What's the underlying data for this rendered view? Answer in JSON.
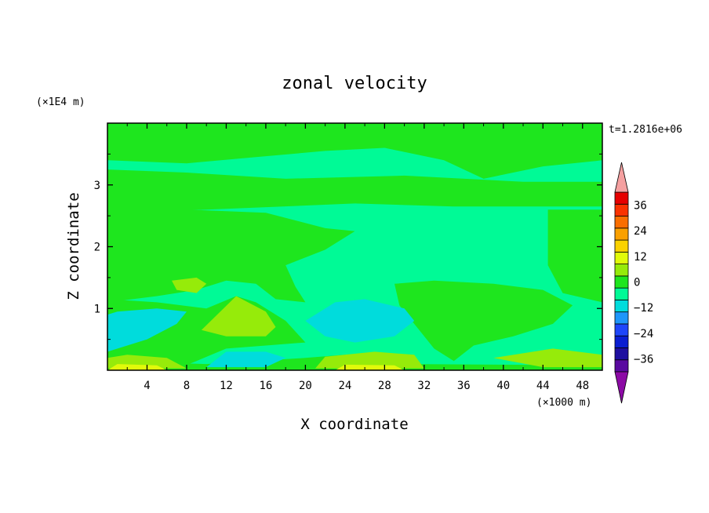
{
  "chart_data": {
    "type": "heatmap",
    "title": "zonal velocity",
    "xlabel": "X coordinate",
    "ylabel": "Z coordinate",
    "x_unit_label": "(×1000 m)",
    "y_unit_label": "(×1E4 m)",
    "time_label": "t=1.2816e+06",
    "xlim": [
      0,
      50
    ],
    "ylim": [
      0,
      4
    ],
    "x_ticks": [
      4,
      8,
      12,
      16,
      20,
      24,
      28,
      32,
      36,
      40,
      44,
      48
    ],
    "x_tick_labels": [
      "4",
      "8",
      "12",
      "16",
      "20",
      "24",
      "28",
      "32",
      "36",
      "40",
      "44",
      "48"
    ],
    "y_ticks": [
      1,
      2,
      3
    ],
    "y_tick_labels": [
      "1",
      "2",
      "3"
    ],
    "colorbar": {
      "levels": [
        -42,
        -36,
        -30,
        -24,
        -18,
        -12,
        -6,
        0,
        6,
        12,
        18,
        24,
        30,
        36,
        42
      ],
      "tick_values": [
        -36,
        -24,
        -12,
        0,
        12,
        24,
        36
      ],
      "tick_labels": [
        "−36",
        "−24",
        "−12",
        "0",
        "12",
        "24",
        "36"
      ],
      "colors": [
        "#5a0aa0",
        "#1e0fa0",
        "#0a1ed2",
        "#1e46fa",
        "#1e96fa",
        "#00dcdc",
        "#00fa96",
        "#1ee61e",
        "#96eb0a",
        "#e1fa0a",
        "#fad200",
        "#faa000",
        "#fa6e00",
        "#fa3200",
        "#e60000"
      ],
      "under_color": "#8c0aa5",
      "over_color": "#f5a0a0"
    },
    "regions": [
      {
        "name": "background",
        "level_bin": 6,
        "polygon": [
          [
            0,
            0
          ],
          [
            50,
            0
          ],
          [
            50,
            4
          ],
          [
            0,
            4
          ]
        ]
      },
      {
        "name": "upper green band",
        "level_bin": 7,
        "polygon": [
          [
            0,
            2.55
          ],
          [
            10,
            2.6
          ],
          [
            25,
            2.7
          ],
          [
            35,
            2.65
          ],
          [
            50,
            2.65
          ],
          [
            50,
            3.05
          ],
          [
            42,
            3.05
          ],
          [
            30,
            3.15
          ],
          [
            18,
            3.1
          ],
          [
            8,
            3.2
          ],
          [
            0,
            3.25
          ]
        ]
      },
      {
        "name": "top green layer",
        "level_bin": 7,
        "polygon": [
          [
            0,
            3.4
          ],
          [
            8,
            3.35
          ],
          [
            15,
            3.45
          ],
          [
            22,
            3.55
          ],
          [
            28,
            3.6
          ],
          [
            34,
            3.4
          ],
          [
            38,
            3.1
          ],
          [
            44,
            3.3
          ],
          [
            50,
            3.4
          ],
          [
            50,
            3.95
          ],
          [
            0,
            3.95
          ]
        ]
      },
      {
        "name": "top strip",
        "level_bin": 7,
        "polygon": [
          [
            0,
            3.95
          ],
          [
            50,
            3.95
          ],
          [
            50,
            4
          ],
          [
            0,
            4
          ]
        ]
      },
      {
        "name": "left large green",
        "level_bin": 7,
        "polygon": [
          [
            0,
            2.6
          ],
          [
            8,
            2.6
          ],
          [
            16,
            2.55
          ],
          [
            22,
            2.3
          ],
          [
            25,
            2.25
          ],
          [
            22,
            1.95
          ],
          [
            18,
            1.7
          ],
          [
            19,
            1.35
          ],
          [
            20,
            1.1
          ],
          [
            17,
            1.15
          ],
          [
            15,
            1.4
          ],
          [
            12,
            1.45
          ],
          [
            9,
            1.3
          ],
          [
            5,
            1.2
          ],
          [
            0,
            1.1
          ]
        ]
      },
      {
        "name": "right green block",
        "level_bin": 7,
        "polygon": [
          [
            44.5,
            2.6
          ],
          [
            50,
            2.6
          ],
          [
            50,
            1.1
          ],
          [
            46,
            1.25
          ],
          [
            44.5,
            1.7
          ],
          [
            44.5,
            2.2
          ]
        ]
      },
      {
        "name": "lower left green",
        "level_bin": 7,
        "polygon": [
          [
            0,
            1.15
          ],
          [
            5,
            1.1
          ],
          [
            10,
            1.0
          ],
          [
            13,
            1.2
          ],
          [
            15,
            1.1
          ],
          [
            18,
            0.8
          ],
          [
            20,
            0.45
          ],
          [
            16,
            0.4
          ],
          [
            12,
            0.35
          ],
          [
            9,
            0.15
          ],
          [
            7,
            0.02
          ],
          [
            0,
            0.02
          ]
        ]
      },
      {
        "name": "bottom green strip",
        "level_bin": 7,
        "polygon": [
          [
            0,
            0
          ],
          [
            50,
            0
          ],
          [
            50,
            0.08
          ],
          [
            30,
            0.1
          ],
          [
            24,
            0.25
          ],
          [
            20,
            0.2
          ],
          [
            10,
            0.1
          ],
          [
            0,
            0.15
          ]
        ]
      },
      {
        "name": "central green patch",
        "level_bin": 7,
        "polygon": [
          [
            29,
            1.4
          ],
          [
            33,
            1.45
          ],
          [
            39,
            1.4
          ],
          [
            44,
            1.3
          ],
          [
            47,
            1.05
          ],
          [
            45,
            0.75
          ],
          [
            41,
            0.55
          ],
          [
            37,
            0.4
          ],
          [
            35,
            0.15
          ],
          [
            33,
            0.35
          ],
          [
            31,
            0.75
          ],
          [
            29.5,
            1.05
          ]
        ]
      },
      {
        "name": "cyan left blob",
        "level_bin": 5,
        "polygon": [
          [
            0,
            0.3
          ],
          [
            4,
            0.5
          ],
          [
            7,
            0.75
          ],
          [
            8,
            0.95
          ],
          [
            5,
            1.0
          ],
          [
            1,
            0.95
          ],
          [
            0,
            0.9
          ]
        ]
      },
      {
        "name": "cyan center blob",
        "level_bin": 5,
        "polygon": [
          [
            20,
            0.8
          ],
          [
            23,
            1.1
          ],
          [
            26,
            1.15
          ],
          [
            30,
            1.0
          ],
          [
            31,
            0.8
          ],
          [
            29,
            0.55
          ],
          [
            25,
            0.45
          ],
          [
            22,
            0.55
          ]
        ]
      },
      {
        "name": "cyan bottom patch",
        "level_bin": 5,
        "polygon": [
          [
            10,
            0.05
          ],
          [
            16,
            0.05
          ],
          [
            18,
            0.2
          ],
          [
            16,
            0.3
          ],
          [
            12,
            0.3
          ]
        ]
      },
      {
        "name": "yellow-green center",
        "level_bin": 8,
        "polygon": [
          [
            9.5,
            0.65
          ],
          [
            13,
            1.2
          ],
          [
            16,
            0.95
          ],
          [
            17,
            0.7
          ],
          [
            16,
            0.55
          ],
          [
            12,
            0.55
          ]
        ]
      },
      {
        "name": "yellow-green upper left",
        "level_bin": 8,
        "polygon": [
          [
            6.5,
            1.45
          ],
          [
            9,
            1.5
          ],
          [
            10,
            1.4
          ],
          [
            9,
            1.25
          ],
          [
            7,
            1.3
          ]
        ]
      },
      {
        "name": "yellow-green bottom left",
        "level_bin": 8,
        "polygon": [
          [
            0,
            0.03
          ],
          [
            8,
            0.03
          ],
          [
            6,
            0.2
          ],
          [
            2,
            0.25
          ],
          [
            0,
            0.2
          ]
        ]
      },
      {
        "name": "yellow-green bottom center",
        "level_bin": 8,
        "polygon": [
          [
            21,
            0.03
          ],
          [
            32,
            0.03
          ],
          [
            31,
            0.25
          ],
          [
            27,
            0.3
          ],
          [
            22,
            0.22
          ]
        ]
      },
      {
        "name": "yellow-green bottom right",
        "level_bin": 8,
        "polygon": [
          [
            39,
            0.2
          ],
          [
            45,
            0.35
          ],
          [
            50,
            0.25
          ],
          [
            50,
            0.05
          ],
          [
            44,
            0.05
          ]
        ]
      },
      {
        "name": "yellow bottom left",
        "level_bin": 9,
        "polygon": [
          [
            0,
            0.0
          ],
          [
            6,
            0.0
          ],
          [
            5,
            0.08
          ],
          [
            1,
            0.1
          ]
        ]
      },
      {
        "name": "yellow bottom center",
        "level_bin": 9,
        "polygon": [
          [
            23,
            0.0
          ],
          [
            30,
            0.0
          ],
          [
            29,
            0.08
          ],
          [
            24,
            0.09
          ]
        ]
      }
    ]
  }
}
